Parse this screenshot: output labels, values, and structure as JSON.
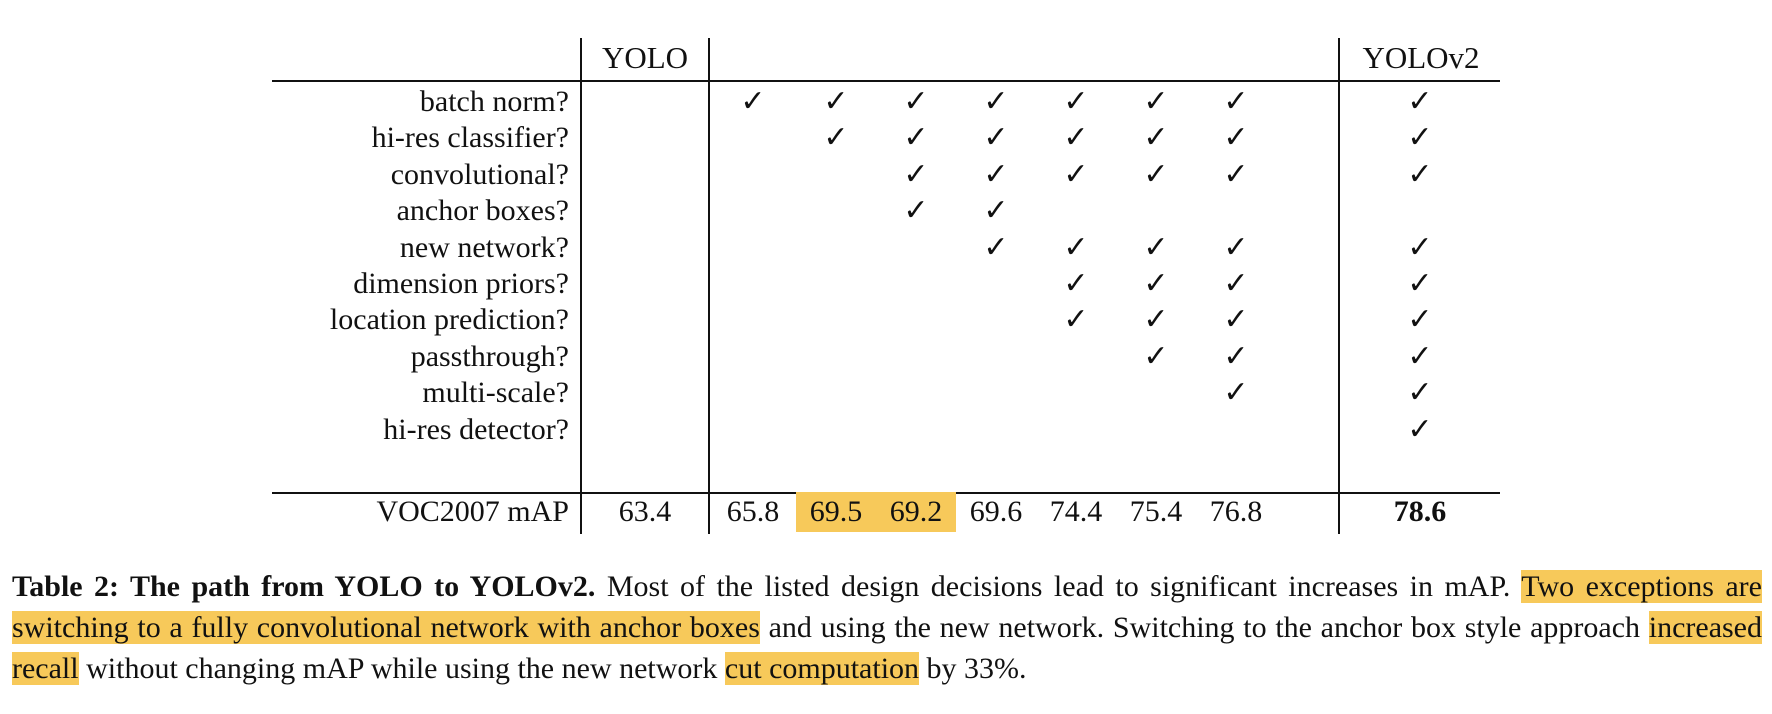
{
  "table": {
    "headers": {
      "yolo": "YOLO",
      "yolov2": "YOLOv2"
    },
    "rows": [
      {
        "label": "batch norm?"
      },
      {
        "label": "hi-res classifier?"
      },
      {
        "label": "convolutional?"
      },
      {
        "label": "anchor boxes?"
      },
      {
        "label": "new network?"
      },
      {
        "label": "dimension priors?"
      },
      {
        "label": "location prediction?"
      },
      {
        "label": "passthrough?"
      },
      {
        "label": "multi-scale?"
      },
      {
        "label": "hi-res detector?"
      }
    ],
    "check_symbol": "✓",
    "checks": [
      [
        0,
        1,
        1,
        1,
        1,
        1,
        1,
        1,
        1
      ],
      [
        0,
        0,
        1,
        1,
        1,
        1,
        1,
        1,
        1
      ],
      [
        0,
        0,
        0,
        1,
        1,
        1,
        1,
        1,
        1
      ],
      [
        0,
        0,
        0,
        1,
        1,
        0,
        0,
        0,
        0
      ],
      [
        0,
        0,
        0,
        0,
        1,
        1,
        1,
        1,
        1
      ],
      [
        0,
        0,
        0,
        0,
        0,
        1,
        1,
        1,
        1
      ],
      [
        0,
        0,
        0,
        0,
        0,
        1,
        1,
        1,
        1
      ],
      [
        0,
        0,
        0,
        0,
        0,
        0,
        1,
        1,
        1
      ],
      [
        0,
        0,
        0,
        0,
        0,
        0,
        0,
        1,
        1
      ],
      [
        0,
        0,
        0,
        0,
        0,
        0,
        0,
        0,
        1
      ]
    ],
    "map_label": "VOC2007 mAP",
    "map_values": [
      "63.4",
      "65.8",
      "69.5",
      "69.2",
      "69.6",
      "74.4",
      "75.4",
      "76.8",
      "78.6"
    ],
    "highlighted_map_indices": [
      2,
      3
    ],
    "bold_map_indices": [
      8
    ],
    "highlight_color": "#f7c95a"
  },
  "caption": {
    "lead": "Table 2: The path from YOLO to YOLOv2.",
    "part1": " Most of the listed design decisions lead to significant increases in mAP. ",
    "hl1": "Two exceptions are switching to a fully convolutional network with anchor boxes",
    "part2": " and using the new network. Switching to the anchor box style approach ",
    "hl2": "increased recall",
    "part3": " without changing mAP while using the new network ",
    "hl3": "cut computation",
    "part4": " by 33%."
  }
}
